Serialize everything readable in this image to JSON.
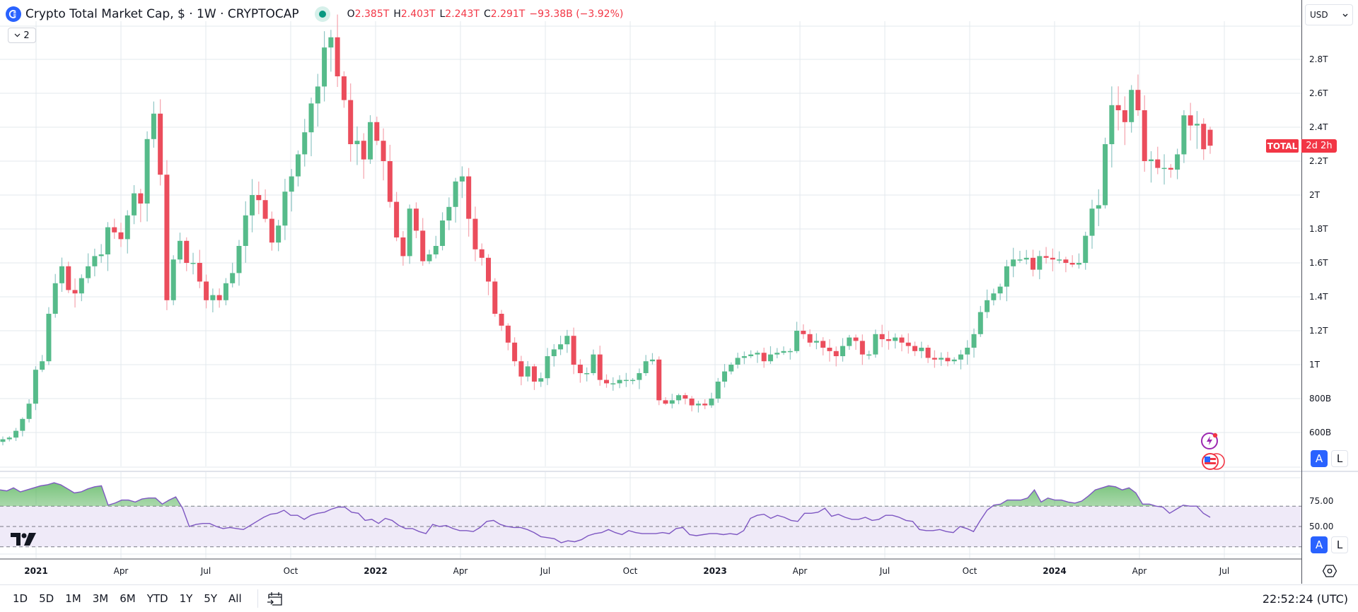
{
  "header": {
    "title": "Crypto Total Market Cap, $ · 1W · CRYPTOCAP",
    "symbol_icon": "cryptocap-logo-icon",
    "market_status_icon": "market-open-dot-icon",
    "ohlc": {
      "open_label": "O",
      "open": "2.385T",
      "high_label": "H",
      "high": "2.403T",
      "low_label": "L",
      "low": "2.243T",
      "close_label": "C",
      "close": "2.291T",
      "change": "−93.38B (−3.92%)"
    },
    "collapse_button": {
      "label": "2",
      "icon": "chevron-down-icon"
    }
  },
  "right_axis": {
    "currency": "USD",
    "currency_icon": "chevron-down-icon",
    "last_price_tag": {
      "symbol": "TOTAL",
      "countdown": "2d 2h"
    },
    "auto_scale_label": "A",
    "log_scale_label": "L",
    "rsi_auto_label": "A",
    "rsi_log_label": "L"
  },
  "bottom_bar": {
    "ranges": [
      "1D",
      "5D",
      "1M",
      "3M",
      "6M",
      "YTD",
      "1Y",
      "5Y",
      "All"
    ],
    "goto_icon": "calendar-goto-icon",
    "clock": "22:52:24 (UTC)",
    "settings_icon": "settings-hexagon-icon"
  },
  "colors": {
    "up": "#22ab94",
    "up_body": "#56bb8a",
    "down": "#f23645",
    "down_body": "#eb4d5c",
    "grid": "#e3e9ee",
    "rsi_line": "#7e57c2",
    "rsi_band": "#efeaf8",
    "accent": "#2962ff"
  },
  "chart_data": [
    {
      "type": "candlestick",
      "title": "Crypto Total Market Cap, $ · 1W · CRYPTOCAP",
      "xlabel": "",
      "ylabel": "USD",
      "y_ticks": [
        "600B",
        "800B",
        "1T",
        "1.2T",
        "1.4T",
        "1.6T",
        "1.8T",
        "2T",
        "2.2T",
        "2.4T",
        "2.6T",
        "2.8T"
      ],
      "y_tick_values_B": [
        600,
        800,
        1000,
        1200,
        1400,
        1600,
        1800,
        2000,
        2200,
        2400,
        2600,
        2800
      ],
      "x_ticks": [
        "2021",
        "Apr",
        "Jul",
        "Oct",
        "2022",
        "Apr",
        "Jul",
        "Oct",
        "2023",
        "Apr",
        "Jul",
        "Oct",
        "2024",
        "Apr",
        "Jul"
      ],
      "ylim_B": [
        530,
        2950
      ],
      "grid": true,
      "last": {
        "open": 2385,
        "high": 2403,
        "low": 2243,
        "close": 2291,
        "change": -93.38,
        "change_pct": -3.92
      },
      "weekly_close_B_approx": [
        560,
        570,
        610,
        680,
        770,
        970,
        1020,
        1300,
        1480,
        1580,
        1440,
        1420,
        1510,
        1580,
        1640,
        1650,
        1810,
        1780,
        1740,
        1880,
        2010,
        1950,
        2330,
        2480,
        2120,
        1380,
        1620,
        1730,
        1600,
        1600,
        1490,
        1380,
        1410,
        1380,
        1480,
        1540,
        1700,
        1880,
        2000,
        1970,
        1860,
        1720,
        1820,
        2020,
        2110,
        2240,
        2370,
        2540,
        2640,
        2870,
        2930,
        2700,
        2560,
        2300,
        2320,
        2210,
        2430,
        2320,
        2200,
        1960,
        1750,
        1640,
        1920,
        1790,
        1610,
        1650,
        1700,
        1850,
        1930,
        2080,
        2110,
        1860,
        1680,
        1630,
        1490,
        1300,
        1230,
        1130,
        1020,
        930,
        990,
        900,
        920,
        1050,
        1090,
        1120,
        1170,
        1000,
        950,
        950,
        1060,
        910,
        890,
        890,
        910,
        910,
        910,
        950,
        1020,
        1030,
        790,
        770,
        790,
        820,
        800,
        760,
        770,
        760,
        800,
        900,
        960,
        1000,
        1040,
        1050,
        1060,
        1070,
        1020,
        1060,
        1070,
        1080,
        1080,
        1200,
        1180,
        1130,
        1140,
        1100,
        1080,
        1050,
        1110,
        1160,
        1140,
        1060,
        1060,
        1180,
        1150,
        1140,
        1160,
        1130,
        1110,
        1080,
        1100,
        1040,
        1030,
        1040,
        1020,
        1030,
        1060,
        1100,
        1180,
        1310,
        1380,
        1420,
        1460,
        1580,
        1620,
        1620,
        1630,
        1560,
        1640,
        1630,
        1620,
        1620,
        1600,
        1590,
        1600,
        1760,
        1920,
        1940,
        2300,
        2530,
        2500,
        2430,
        2620,
        2500,
        2200,
        2210,
        2160,
        2160,
        2150,
        2240,
        2470,
        2410,
        2420,
        2270,
        2291
      ]
    },
    {
      "type": "line",
      "title": "RSI",
      "y_ticks": [
        "50.00",
        "75.00"
      ],
      "bands": [
        30,
        50,
        70
      ],
      "ylim": [
        20,
        100
      ],
      "last_value_approx": 59,
      "values_approx": [
        86,
        85,
        88,
        84,
        86,
        88,
        90,
        91,
        93,
        91,
        87,
        83,
        84,
        87,
        89,
        90,
        71,
        73,
        76,
        76,
        74,
        77,
        78,
        78,
        72,
        76,
        79,
        68,
        50,
        52,
        53,
        53,
        50,
        48,
        49,
        48,
        47,
        51,
        55,
        59,
        62,
        63,
        66,
        61,
        61,
        57,
        61,
        63,
        64,
        67,
        69,
        69,
        64,
        63,
        56,
        57,
        53,
        58,
        56,
        51,
        48,
        48,
        45,
        43,
        52,
        50,
        51,
        48,
        46,
        46,
        45,
        49,
        55,
        56,
        52,
        50,
        49,
        49,
        47,
        44,
        40,
        39,
        38,
        34,
        36,
        35,
        37,
        41,
        43,
        44,
        47,
        44,
        42,
        46,
        44,
        43,
        43,
        43,
        44,
        43,
        48,
        49,
        42,
        41,
        42,
        43,
        43,
        42,
        43,
        42,
        46,
        58,
        61,
        62,
        58,
        61,
        59,
        56,
        55,
        63,
        63,
        64,
        68,
        60,
        62,
        59,
        57,
        57,
        59,
        56,
        57,
        61,
        61,
        59,
        56,
        55,
        47,
        46,
        46,
        47,
        45,
        44,
        50,
        48,
        45,
        56,
        66,
        71,
        72,
        76,
        76,
        76,
        78,
        86,
        74,
        78,
        76,
        76,
        74,
        73,
        75,
        80,
        86,
        88,
        90,
        89,
        86,
        88,
        83,
        72,
        72,
        70,
        69,
        63,
        67,
        71,
        70,
        70,
        63,
        59
      ]
    }
  ]
}
